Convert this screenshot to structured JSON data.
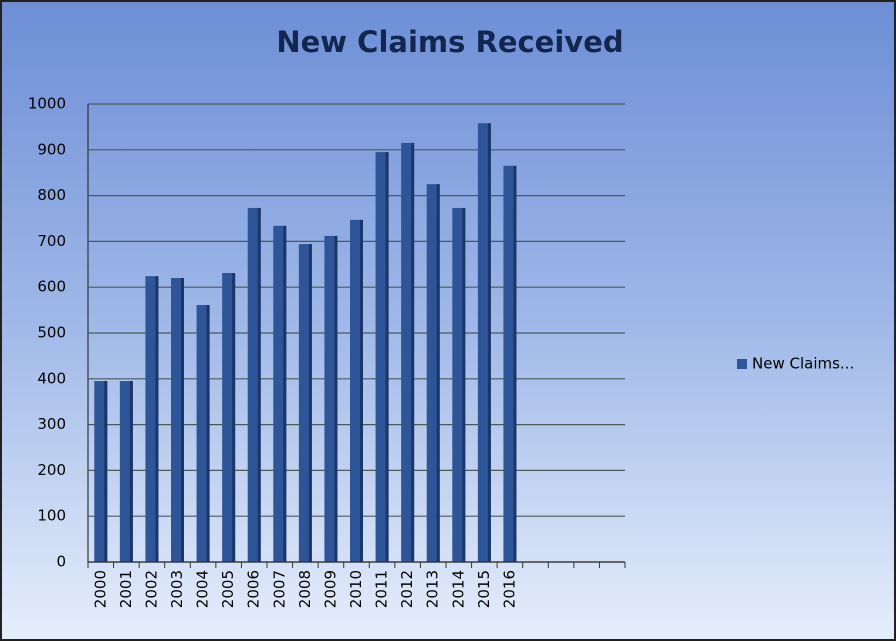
{
  "chart_data": {
    "type": "bar",
    "title": "New Claims Received",
    "categories": [
      "2000",
      "2001",
      "2002",
      "2003",
      "2004",
      "2005",
      "2006",
      "2007",
      "2008",
      "2009",
      "2010",
      "2011",
      "2012",
      "2013",
      "2014",
      "2015",
      "2016",
      null,
      null,
      null,
      null
    ],
    "series": [
      {
        "name": "New Claims...",
        "color": "#2e5597",
        "values": [
          395,
          395,
          624,
          620,
          561,
          631,
          773,
          734,
          694,
          712,
          747,
          895,
          915,
          825,
          773,
          958,
          865,
          null,
          null,
          null,
          null
        ]
      }
    ],
    "ylim": [
      0,
      1000
    ],
    "yticks": [
      0,
      100,
      200,
      300,
      400,
      500,
      600,
      700,
      800,
      900,
      1000
    ],
    "grid": true,
    "legend": "right"
  }
}
